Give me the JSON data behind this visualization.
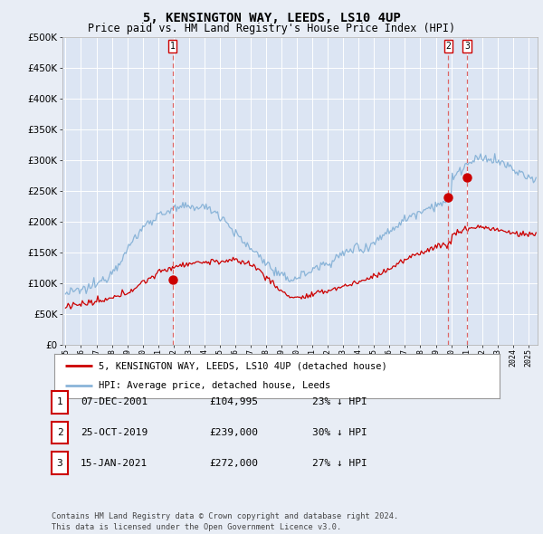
{
  "title": "5, KENSINGTON WAY, LEEDS, LS10 4UP",
  "subtitle": "Price paid vs. HM Land Registry's House Price Index (HPI)",
  "title_fontsize": 10,
  "subtitle_fontsize": 8.5,
  "bg_color": "#e8edf5",
  "plot_bg_color": "#dce5f3",
  "grid_color": "#ffffff",
  "hpi_color": "#8ab4d8",
  "price_color": "#cc0000",
  "vline_color": "#dd6666",
  "marker_color": "#cc0000",
  "ylim": [
    0,
    500000
  ],
  "yticks": [
    0,
    50000,
    100000,
    150000,
    200000,
    250000,
    300000,
    350000,
    400000,
    450000,
    500000
  ],
  "sale_dates": [
    2001.93,
    2019.82,
    2021.04
  ],
  "sale_prices": [
    104995,
    239000,
    272000
  ],
  "sale_labels": [
    "1",
    "2",
    "3"
  ],
  "table_rows": [
    [
      "1",
      "07-DEC-2001",
      "£104,995",
      "23% ↓ HPI"
    ],
    [
      "2",
      "25-OCT-2019",
      "£239,000",
      "30% ↓ HPI"
    ],
    [
      "3",
      "15-JAN-2021",
      "£272,000",
      "27% ↓ HPI"
    ]
  ],
  "legend_labels": [
    "5, KENSINGTON WAY, LEEDS, LS10 4UP (detached house)",
    "HPI: Average price, detached house, Leeds"
  ],
  "footer": "Contains HM Land Registry data © Crown copyright and database right 2024.\nThis data is licensed under the Open Government Licence v3.0."
}
